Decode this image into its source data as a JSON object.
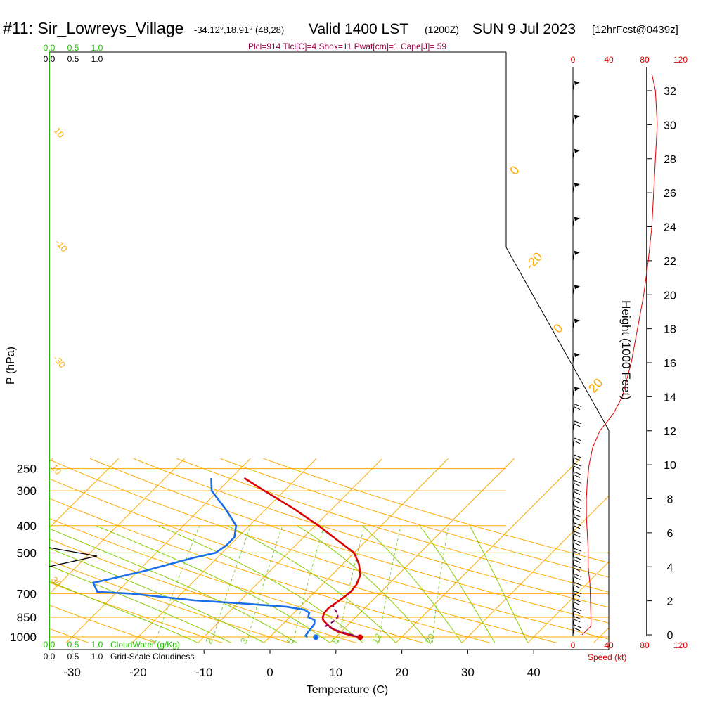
{
  "header": {
    "station": "#11: Sir_Lowreys_Village",
    "coords": "-34.12°,18.91° (48,28)",
    "valid": "Valid 1400 LST",
    "utc": "(1200Z)",
    "date": "SUN 9 Jul 2023",
    "forecast": "[12hrFcst@0439z]"
  },
  "params_line": "Plcl=914 Tlcl[C]=4 Shox=11 Pwat[cm]=1 Cape[J]= 59",
  "scales": {
    "cloudwater_top_green": [
      "0.0",
      "0.5",
      "1.0"
    ],
    "cloudiness_top_black": [
      "0.0",
      "0.5",
      "1.0"
    ],
    "cloudwater_bottom_green": [
      "0.0",
      "0.5",
      "1.0"
    ],
    "cloudwater_label": "CloudWater (g/Kg)",
    "cloudiness_bottom_black": [
      "0.0",
      "0.5",
      "1.0"
    ],
    "cloudiness_label": "Grid-Scale Cloudiness",
    "speed_top": [
      "0",
      "40",
      "80",
      "120"
    ],
    "speed_bottom": [
      "0",
      "40",
      "80",
      "120"
    ],
    "speed_label": "Speed (kt)"
  },
  "colors": {
    "isobar": "#ffaa00",
    "isotherm": "#ffaa00",
    "dry_adiabat": "#ffaa00",
    "moist_adiabat": "#88cc00",
    "mixing_ratio": "#88cc44",
    "temperature": "#dd0000",
    "dewpoint": "#1a6ee8",
    "parcel": "#880066",
    "cloud_axis": "#22bb00",
    "speed": "#dd0000"
  },
  "chart_data": {
    "type": "line",
    "title": "#11: Sir_Lowreys_Village",
    "xlabel": "Temperature (C)",
    "ylabel": "P (hPa)",
    "y2label": "Height (1000 Feet)",
    "x_ticks": [
      "-30",
      "-20",
      "-10",
      "0",
      "10",
      "20",
      "30",
      "40"
    ],
    "p_ticks": [
      "250",
      "300",
      "400",
      "500",
      "700",
      "850",
      "1000"
    ],
    "height_ticks": [
      "0",
      "2",
      "4",
      "6",
      "8",
      "10",
      "12",
      "14",
      "16",
      "18",
      "20",
      "22",
      "24",
      "26",
      "28",
      "30",
      "32"
    ],
    "dry_adiabat_labels": [
      "10",
      "0",
      "-10",
      "-20",
      "-30",
      "0",
      "10",
      "20",
      "30"
    ],
    "mixing_ratio_labels": [
      "1",
      "2",
      "3",
      "5",
      "8",
      "12",
      "20"
    ],
    "series": [
      {
        "name": "Temperature",
        "points": [
          [
            1002,
            13.7
          ],
          [
            990,
            12.4
          ],
          [
            960,
            9.7
          ],
          [
            930,
            8.0
          ],
          [
            900,
            6.7
          ],
          [
            870,
            5.5
          ],
          [
            850,
            5.0
          ],
          [
            820,
            4.6
          ],
          [
            790,
            4.5
          ],
          [
            760,
            4.8
          ],
          [
            720,
            5.2
          ],
          [
            690,
            5.4
          ],
          [
            650,
            5.2
          ],
          [
            600,
            4.3
          ],
          [
            550,
            2.5
          ],
          [
            500,
            0.0
          ],
          [
            450,
            -4.5
          ],
          [
            400,
            -9.5
          ],
          [
            350,
            -15.5
          ],
          [
            300,
            -23.0
          ],
          [
            270,
            -28.0
          ]
        ]
      },
      {
        "name": "Dewpoint",
        "points": [
          [
            1002,
            5.7
          ],
          [
            990,
            5.2
          ],
          [
            950,
            5.0
          ],
          [
            900,
            4.8
          ],
          [
            870,
            4.2
          ],
          [
            850,
            2.8
          ],
          [
            820,
            2.3
          ],
          [
            800,
            1.2
          ],
          [
            780,
            -2.0
          ],
          [
            760,
            -9.0
          ],
          [
            740,
            -17.0
          ],
          [
            700,
            -27.5
          ],
          [
            690,
            -33.0
          ],
          [
            640,
            -35.0
          ],
          [
            620,
            -33.0
          ],
          [
            580,
            -29.0
          ],
          [
            520,
            -23.5
          ],
          [
            500,
            -21.0
          ],
          [
            470,
            -20.5
          ],
          [
            440,
            -20.5
          ],
          [
            400,
            -22.0
          ],
          [
            350,
            -26.0
          ],
          [
            300,
            -31.0
          ],
          [
            270,
            -33.0
          ]
        ]
      },
      {
        "name": "Parcel",
        "points": [
          [
            1002,
            13.7
          ],
          [
            960,
            10.2
          ],
          [
            940,
            8.6
          ],
          [
            914,
            6.8
          ],
          [
            880,
            7.3
          ],
          [
            850,
            7.3
          ],
          [
            820,
            6.6
          ],
          [
            790,
            5.3
          ],
          [
            770,
            4.8
          ]
        ]
      }
    ],
    "surface_dewpoint_marker": 7.0,
    "wind_speed_profile": [
      [
        0,
        10
      ],
      [
        0.5,
        20
      ],
      [
        1,
        20
      ],
      [
        3,
        19
      ],
      [
        4,
        17
      ],
      [
        5,
        17
      ],
      [
        6,
        16
      ],
      [
        7,
        15
      ],
      [
        8,
        15
      ],
      [
        9,
        16
      ],
      [
        10,
        18
      ],
      [
        11,
        22
      ],
      [
        12,
        30
      ],
      [
        13,
        45
      ],
      [
        14,
        55
      ],
      [
        16,
        65
      ],
      [
        18,
        72
      ],
      [
        20,
        79
      ],
      [
        22,
        84
      ],
      [
        24,
        88
      ],
      [
        26,
        90
      ],
      [
        28,
        92
      ],
      [
        30,
        94
      ],
      [
        32,
        92
      ],
      [
        33,
        88
      ]
    ],
    "wind_barbs": [
      {
        "h": 0,
        "spd": 15
      },
      {
        "h": 0.5,
        "spd": 18
      },
      {
        "h": 1,
        "spd": 20
      },
      {
        "h": 1.5,
        "spd": 20
      },
      {
        "h": 2,
        "spd": 20
      },
      {
        "h": 2.5,
        "spd": 19
      },
      {
        "h": 3,
        "spd": 19
      },
      {
        "h": 3.5,
        "spd": 18
      },
      {
        "h": 4,
        "spd": 17
      },
      {
        "h": 4.5,
        "spd": 17
      },
      {
        "h": 5,
        "spd": 17
      },
      {
        "h": 5.5,
        "spd": 16
      },
      {
        "h": 6,
        "spd": 16
      },
      {
        "h": 6.5,
        "spd": 15
      },
      {
        "h": 7,
        "spd": 15
      },
      {
        "h": 7.5,
        "spd": 15
      },
      {
        "h": 8,
        "spd": 15
      },
      {
        "h": 8.5,
        "spd": 15
      },
      {
        "h": 9,
        "spd": 16
      },
      {
        "h": 9.5,
        "spd": 17
      },
      {
        "h": 10,
        "spd": 18
      },
      {
        "h": 11,
        "spd": 20
      },
      {
        "h": 12,
        "spd": 22
      },
      {
        "h": 13,
        "spd": 25
      },
      {
        "h": 14,
        "spd": 50
      },
      {
        "h": 16,
        "spd": 55
      },
      {
        "h": 18,
        "spd": 60
      },
      {
        "h": 20,
        "spd": 65
      },
      {
        "h": 22,
        "spd": 70
      },
      {
        "h": 24,
        "spd": 70
      },
      {
        "h": 26,
        "spd": 70
      },
      {
        "h": 28,
        "spd": 75
      },
      {
        "h": 30,
        "spd": 75
      },
      {
        "h": 32,
        "spd": 75
      }
    ],
    "cloudiness_profile": [
      [
        880,
        0
      ],
      [
        870,
        0.95
      ],
      [
        855,
        0.85
      ],
      [
        860,
        0
      ],
      [
        855,
        0
      ]
    ],
    "legend": "none",
    "grid": true
  }
}
